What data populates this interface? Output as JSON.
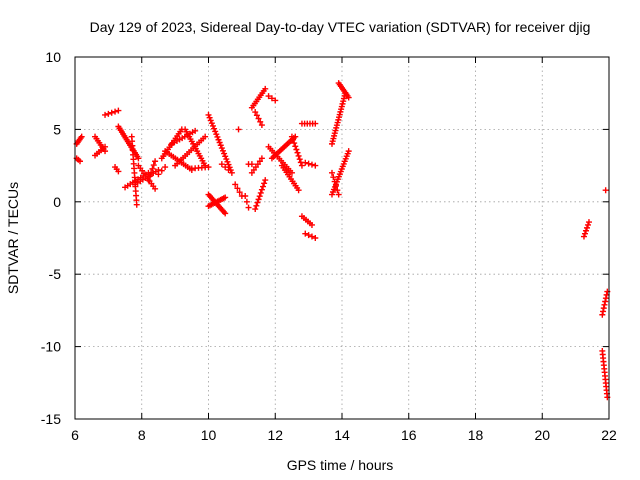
{
  "chart_data": {
    "type": "scatter",
    "title": "Day 129 of 2023, Sidereal Day-to-day VTEC variation (SDTVAR) for receiver djig",
    "xlabel": "GPS time / hours",
    "ylabel": "SDTVAR / TECUs",
    "xlim": [
      6,
      22
    ],
    "ylim": [
      -15,
      10
    ],
    "xticks": [
      6,
      8,
      10,
      12,
      14,
      16,
      18,
      20,
      22
    ],
    "yticks": [
      -15,
      -10,
      -5,
      0,
      5,
      10
    ],
    "xtick_labels": [
      "6",
      "8",
      "10",
      "12",
      "14",
      "16",
      "18",
      "20",
      "22"
    ],
    "ytick_labels": [
      "-15",
      "-10",
      "-5",
      "0",
      "5",
      "10"
    ],
    "grid": true,
    "marker": "+",
    "color": "#ff0000",
    "segments": [
      {
        "x0": 6.05,
        "y0": 4.0,
        "x1": 6.2,
        "y1": 4.5,
        "n": 6
      },
      {
        "x0": 6.05,
        "y0": 3.0,
        "x1": 6.15,
        "y1": 2.8,
        "n": 3
      },
      {
        "x0": 6.6,
        "y0": 4.5,
        "x1": 6.9,
        "y1": 3.5,
        "n": 8
      },
      {
        "x0": 6.6,
        "y0": 3.2,
        "x1": 6.9,
        "y1": 3.8,
        "n": 6
      },
      {
        "x0": 6.9,
        "y0": 6.0,
        "x1": 7.3,
        "y1": 6.3,
        "n": 5
      },
      {
        "x0": 7.2,
        "y0": 2.4,
        "x1": 7.3,
        "y1": 2.1,
        "n": 3
      },
      {
        "x0": 7.3,
        "y0": 5.2,
        "x1": 7.9,
        "y1": 3.0,
        "n": 18
      },
      {
        "x0": 7.7,
        "y0": 4.5,
        "x1": 7.85,
        "y1": -0.2,
        "n": 16
      },
      {
        "x0": 7.5,
        "y0": 1.0,
        "x1": 8.2,
        "y1": 2.0,
        "n": 10
      },
      {
        "x0": 7.8,
        "y0": 1.2,
        "x1": 8.5,
        "y1": 2.2,
        "n": 10
      },
      {
        "x0": 7.9,
        "y0": 2.5,
        "x1": 8.4,
        "y1": 0.9,
        "n": 10
      },
      {
        "x0": 8.2,
        "y0": 1.5,
        "x1": 8.4,
        "y1": 2.8,
        "n": 6
      },
      {
        "x0": 8.5,
        "y0": 1.9,
        "x1": 8.7,
        "y1": 2.4,
        "n": 3
      },
      {
        "x0": 8.6,
        "y0": 3.0,
        "x1": 9.2,
        "y1": 5.0,
        "n": 14
      },
      {
        "x0": 8.7,
        "y0": 3.5,
        "x1": 9.5,
        "y1": 2.2,
        "n": 14
      },
      {
        "x0": 8.9,
        "y0": 4.0,
        "x1": 9.6,
        "y1": 4.9,
        "n": 10
      },
      {
        "x0": 9.0,
        "y0": 2.5,
        "x1": 9.9,
        "y1": 4.5,
        "n": 16
      },
      {
        "x0": 9.3,
        "y0": 5.0,
        "x1": 9.9,
        "y1": 2.5,
        "n": 16
      },
      {
        "x0": 9.5,
        "y0": 2.3,
        "x1": 10.0,
        "y1": 2.4,
        "n": 6
      },
      {
        "x0": 10.0,
        "y0": 6.0,
        "x1": 10.7,
        "y1": 2.0,
        "n": 22
      },
      {
        "x0": 10.0,
        "y0": 0.5,
        "x1": 10.5,
        "y1": -0.8,
        "n": 14
      },
      {
        "x0": 10.0,
        "y0": -0.3,
        "x1": 10.5,
        "y1": 0.3,
        "n": 12
      },
      {
        "x0": 10.4,
        "y0": 2.6,
        "x1": 10.6,
        "y1": 2.2,
        "n": 3
      },
      {
        "x0": 10.8,
        "y0": 1.2,
        "x1": 11.0,
        "y1": 0.4,
        "n": 4
      },
      {
        "x0": 10.9,
        "y0": 5.0,
        "x1": 10.95,
        "y1": 5.0,
        "n": 1
      },
      {
        "x0": 11.2,
        "y0": 2.6,
        "x1": 11.3,
        "y1": 2.6,
        "n": 2
      },
      {
        "x0": 11.1,
        "y0": 0.4,
        "x1": 11.2,
        "y1": -0.4,
        "n": 3
      },
      {
        "x0": 11.3,
        "y0": 6.5,
        "x1": 11.7,
        "y1": 7.8,
        "n": 10
      },
      {
        "x0": 11.4,
        "y0": 6.2,
        "x1": 11.6,
        "y1": 5.3,
        "n": 5
      },
      {
        "x0": 11.3,
        "y0": 2.0,
        "x1": 11.6,
        "y1": 3.0,
        "n": 6
      },
      {
        "x0": 11.4,
        "y0": -0.5,
        "x1": 11.7,
        "y1": 1.5,
        "n": 10
      },
      {
        "x0": 11.8,
        "y0": 7.3,
        "x1": 12.0,
        "y1": 7.0,
        "n": 3
      },
      {
        "x0": 11.9,
        "y0": 3.0,
        "x1": 12.6,
        "y1": 4.5,
        "n": 16
      },
      {
        "x0": 11.8,
        "y0": 3.8,
        "x1": 12.5,
        "y1": 2.0,
        "n": 14
      },
      {
        "x0": 12.2,
        "y0": 2.5,
        "x1": 12.7,
        "y1": 0.8,
        "n": 12
      },
      {
        "x0": 12.5,
        "y0": 4.5,
        "x1": 12.8,
        "y1": 2.5,
        "n": 10
      },
      {
        "x0": 12.8,
        "y0": -1.0,
        "x1": 13.1,
        "y1": -1.6,
        "n": 6
      },
      {
        "x0": 12.9,
        "y0": -2.2,
        "x1": 13.2,
        "y1": -2.5,
        "n": 4
      },
      {
        "x0": 12.8,
        "y0": 5.4,
        "x1": 13.2,
        "y1": 5.4,
        "n": 6
      },
      {
        "x0": 12.9,
        "y0": 2.7,
        "x1": 13.2,
        "y1": 2.5,
        "n": 4
      },
      {
        "x0": 13.7,
        "y0": 4.0,
        "x1": 14.1,
        "y1": 7.5,
        "n": 20
      },
      {
        "x0": 13.9,
        "y0": 8.2,
        "x1": 14.2,
        "y1": 7.2,
        "n": 10
      },
      {
        "x0": 13.7,
        "y0": 0.5,
        "x1": 14.2,
        "y1": 3.5,
        "n": 18
      },
      {
        "x0": 13.7,
        "y0": 2.0,
        "x1": 13.9,
        "y1": 0.5,
        "n": 6
      },
      {
        "x0": 21.25,
        "y0": -2.4,
        "x1": 21.4,
        "y1": -1.4,
        "n": 6
      },
      {
        "x0": 21.9,
        "y0": 0.8,
        "x1": 21.95,
        "y1": 0.8,
        "n": 1
      },
      {
        "x0": 21.8,
        "y0": -7.8,
        "x1": 21.95,
        "y1": -6.2,
        "n": 8
      },
      {
        "x0": 21.8,
        "y0": -10.3,
        "x1": 21.95,
        "y1": -13.5,
        "n": 14
      }
    ]
  }
}
